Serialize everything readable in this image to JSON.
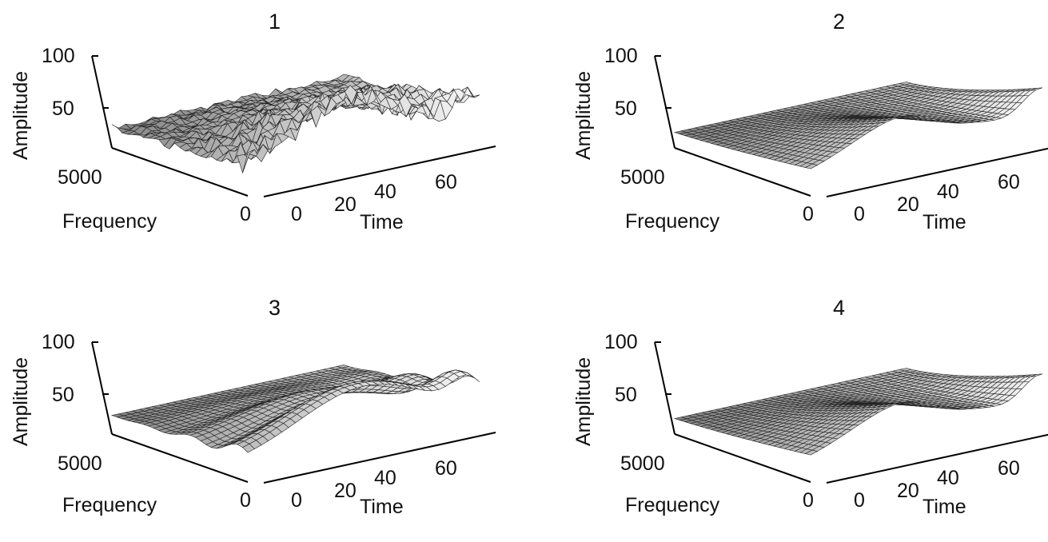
{
  "figure": {
    "panels": [
      {
        "title": "1",
        "ylabel": "Amplitude",
        "freq_label": "Frequency",
        "time_label": "Time",
        "yticks": [
          "100",
          "50"
        ],
        "freq_ticks": [
          "5000",
          "0"
        ],
        "time_ticks": [
          "0",
          "20",
          "40",
          "60"
        ]
      },
      {
        "title": "2",
        "ylabel": "Amplitude",
        "freq_label": "Frequency",
        "time_label": "Time",
        "yticks": [
          "100",
          "50"
        ],
        "freq_ticks": [
          "5000",
          "0"
        ],
        "time_ticks": [
          "0",
          "20",
          "40",
          "60"
        ]
      },
      {
        "title": "3",
        "ylabel": "Amplitude",
        "freq_label": "Frequency",
        "time_label": "Time",
        "yticks": [
          "100",
          "50"
        ],
        "freq_ticks": [
          "5000",
          "0"
        ],
        "time_ticks": [
          "0",
          "20",
          "40",
          "60"
        ]
      },
      {
        "title": "4",
        "ylabel": "Amplitude",
        "freq_label": "Frequency",
        "time_label": "Time",
        "yticks": [
          "100",
          "50"
        ],
        "freq_ticks": [
          "5000",
          "0"
        ],
        "time_ticks": [
          "0",
          "20",
          "40",
          "60"
        ]
      }
    ]
  },
  "chart_data": [
    {
      "type": "surface",
      "title": "1",
      "xlabel": "Time",
      "ylabel": "Frequency",
      "zlabel": "Amplitude",
      "xlim": [
        0,
        64
      ],
      "ylim": [
        0,
        5000
      ],
      "zlim": [
        0,
        100
      ],
      "xticks": [
        0,
        20,
        40,
        60
      ],
      "yticks": [
        0,
        5000
      ],
      "zticks": [
        50,
        100
      ],
      "grid": false,
      "surface_style": "noisy"
    },
    {
      "type": "surface",
      "title": "2",
      "xlabel": "Time",
      "ylabel": "Frequency",
      "zlabel": "Amplitude",
      "xlim": [
        0,
        64
      ],
      "ylim": [
        0,
        5000
      ],
      "zlim": [
        0,
        100
      ],
      "xticks": [
        0,
        20,
        40,
        60
      ],
      "yticks": [
        0,
        5000
      ],
      "zticks": [
        50,
        100
      ],
      "grid": false,
      "surface_style": "smooth"
    },
    {
      "type": "surface",
      "title": "3",
      "xlabel": "Time",
      "ylabel": "Frequency",
      "zlabel": "Amplitude",
      "xlim": [
        0,
        64
      ],
      "ylim": [
        0,
        5000
      ],
      "zlim": [
        0,
        100
      ],
      "xticks": [
        0,
        20,
        40,
        60
      ],
      "yticks": [
        0,
        5000
      ],
      "zticks": [
        50,
        100
      ],
      "grid": false,
      "surface_style": "ridged"
    },
    {
      "type": "surface",
      "title": "4",
      "xlabel": "Time",
      "ylabel": "Frequency",
      "zlabel": "Amplitude",
      "xlim": [
        0,
        64
      ],
      "ylim": [
        0,
        5000
      ],
      "zlim": [
        0,
        100
      ],
      "xticks": [
        0,
        20,
        40,
        60
      ],
      "yticks": [
        0,
        5000
      ],
      "zticks": [
        50,
        100
      ],
      "grid": false,
      "surface_style": "smooth"
    }
  ]
}
